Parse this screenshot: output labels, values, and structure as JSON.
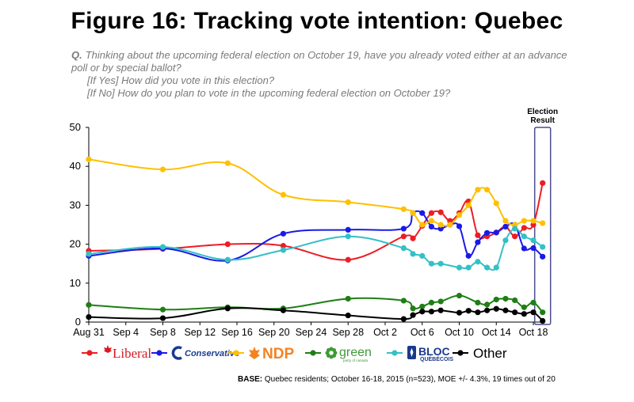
{
  "title": "Figure 16: Tracking vote intention: Quebec",
  "question": {
    "prefix": "Q.",
    "text": "Thinking about the upcoming federal election on October 19, have you already voted either at an advance poll or by special ballot?",
    "if_yes_tag": "[If Yes]",
    "if_yes": "How did you vote in this election?",
    "if_no_tag": "[If No]",
    "if_no": "How do you plan to vote in the upcoming federal election on October 19?"
  },
  "base_label": "BASE:",
  "base_text": "Quebec residents; October 16-18, 2015 (n=523), MOE +/- 4.3%, 19 times out of 20",
  "chart_data": {
    "type": "line",
    "x_type": "date",
    "x_axis_labels": [
      "Aug 31",
      "Sep 4",
      "Sep 8",
      "Sep 12",
      "Sep 16",
      "Sep 20",
      "Sep 24",
      "Sep 28",
      "Oct 2",
      "Oct 6",
      "Oct 10",
      "Oct 14",
      "Oct 18"
    ],
    "ylim": [
      0,
      50
    ],
    "yticks": [
      0,
      10,
      20,
      30,
      40,
      50
    ],
    "grid": false,
    "legend_position": "bottom",
    "highlight_label": "Election Result",
    "highlight_date": "Oct 19",
    "series": [
      {
        "name": "Liberal",
        "legend_style": "logo",
        "color": "#ee1c25",
        "points": [
          [
            "Aug 31",
            18.3
          ],
          [
            "Sep 8",
            18.8
          ],
          [
            "Sep 15",
            20
          ],
          [
            "Sep 21",
            19.6
          ],
          [
            "Sep 28",
            16
          ],
          [
            "Oct 4",
            22
          ],
          [
            "Oct 5",
            21.5
          ],
          [
            "Oct 6",
            24.7
          ],
          [
            "Oct 7",
            28
          ],
          [
            "Oct 8",
            28.2
          ],
          [
            "Oct 9",
            26
          ],
          [
            "Oct 10",
            28
          ],
          [
            "Oct 11",
            31
          ],
          [
            "Oct 12",
            22.3
          ],
          [
            "Oct 13",
            22
          ],
          [
            "Oct 14",
            23
          ],
          [
            "Oct 15",
            24.5
          ],
          [
            "Oct 16",
            22
          ],
          [
            "Oct 17",
            24.2
          ],
          [
            "Oct 18",
            25
          ],
          [
            "Oct 19",
            35.7
          ]
        ]
      },
      {
        "name": "Conservative",
        "legend_style": "logo",
        "color": "#1a1ae6",
        "points": [
          [
            "Aug 31",
            17
          ],
          [
            "Sep 8",
            18.9
          ],
          [
            "Sep 15",
            15.8
          ],
          [
            "Sep 21",
            22.7
          ],
          [
            "Sep 28",
            23.7
          ],
          [
            "Oct 4",
            24
          ],
          [
            "Oct 5",
            28
          ],
          [
            "Oct 6",
            28
          ],
          [
            "Oct 7",
            24.5
          ],
          [
            "Oct 8",
            24
          ],
          [
            "Oct 9",
            25
          ],
          [
            "Oct 10",
            24.6
          ],
          [
            "Oct 11",
            17
          ],
          [
            "Oct 12",
            20.5
          ],
          [
            "Oct 13",
            22.9
          ],
          [
            "Oct 14",
            23
          ],
          [
            "Oct 15",
            24.5
          ],
          [
            "Oct 16",
            25
          ],
          [
            "Oct 17",
            18.9
          ],
          [
            "Oct 18",
            19
          ],
          [
            "Oct 19",
            16.8
          ]
        ]
      },
      {
        "name": "NDP",
        "legend_style": "logo",
        "color": "#ffc000",
        "points": [
          [
            "Aug 31",
            41.8
          ],
          [
            "Sep 8",
            39.2
          ],
          [
            "Sep 15",
            40.8
          ],
          [
            "Sep 21",
            32.7
          ],
          [
            "Sep 28",
            30.8
          ],
          [
            "Oct 4",
            29
          ],
          [
            "Oct 5",
            28
          ],
          [
            "Oct 6",
            25
          ],
          [
            "Oct 7",
            26
          ],
          [
            "Oct 8",
            25
          ],
          [
            "Oct 9",
            25
          ],
          [
            "Oct 10",
            27.5
          ],
          [
            "Oct 11",
            30
          ],
          [
            "Oct 12",
            34
          ],
          [
            "Oct 13",
            34
          ],
          [
            "Oct 14",
            30.5
          ],
          [
            "Oct 15",
            26
          ],
          [
            "Oct 16",
            25
          ],
          [
            "Oct 17",
            26
          ],
          [
            "Oct 18",
            26
          ],
          [
            "Oct 19",
            25.4
          ]
        ]
      },
      {
        "name": "Green",
        "legend_style": "logo",
        "color": "#1e7f14",
        "points": [
          [
            "Aug 31",
            4.4
          ],
          [
            "Sep 8",
            3.2
          ],
          [
            "Sep 15",
            3.8
          ],
          [
            "Sep 21",
            3.5
          ],
          [
            "Sep 28",
            6
          ],
          [
            "Oct 4",
            5.5
          ],
          [
            "Oct 5",
            3.5
          ],
          [
            "Oct 6",
            4
          ],
          [
            "Oct 7",
            5
          ],
          [
            "Oct 8",
            5.3
          ],
          [
            "Oct 10",
            6.8
          ],
          [
            "Oct 12",
            5
          ],
          [
            "Oct 13",
            4.5
          ],
          [
            "Oct 14",
            5.8
          ],
          [
            "Oct 15",
            6
          ],
          [
            "Oct 16",
            5.6
          ],
          [
            "Oct 17",
            3.8
          ],
          [
            "Oct 18",
            5
          ],
          [
            "Oct 19",
            2.5
          ]
        ]
      },
      {
        "name": "Bloc Québécois",
        "legend_style": "logo",
        "color": "#33c0c6",
        "points": [
          [
            "Aug 31",
            17.5
          ],
          [
            "Sep 8",
            19.3
          ],
          [
            "Sep 15",
            16
          ],
          [
            "Sep 21",
            18.5
          ],
          [
            "Sep 28",
            22
          ],
          [
            "Oct 4",
            19
          ],
          [
            "Oct 5",
            17.5
          ],
          [
            "Oct 6",
            17
          ],
          [
            "Oct 7",
            15
          ],
          [
            "Oct 8",
            15
          ],
          [
            "Oct 10",
            14
          ],
          [
            "Oct 11",
            14
          ],
          [
            "Oct 12",
            15.5
          ],
          [
            "Oct 13",
            14
          ],
          [
            "Oct 14",
            14
          ],
          [
            "Oct 15",
            21
          ],
          [
            "Oct 16",
            24
          ],
          [
            "Oct 17",
            22
          ],
          [
            "Oct 18",
            21
          ],
          [
            "Oct 19",
            19.3
          ]
        ]
      },
      {
        "name": "Other",
        "legend_style": "text",
        "color": "#000000",
        "points": [
          [
            "Aug 31",
            1.3
          ],
          [
            "Sep 8",
            1
          ],
          [
            "Sep 15",
            3.5
          ],
          [
            "Sep 21",
            3
          ],
          [
            "Sep 28",
            1.7
          ],
          [
            "Oct 4",
            0.8
          ],
          [
            "Oct 5",
            1.8
          ],
          [
            "Oct 6",
            2.7
          ],
          [
            "Oct 7",
            2.7
          ],
          [
            "Oct 8",
            3
          ],
          [
            "Oct 10",
            2.4
          ],
          [
            "Oct 11",
            2.9
          ],
          [
            "Oct 12",
            2.5
          ],
          [
            "Oct 13",
            3
          ],
          [
            "Oct 14",
            3.4
          ],
          [
            "Oct 15",
            3
          ],
          [
            "Oct 16",
            2.5
          ],
          [
            "Oct 17",
            2.1
          ],
          [
            "Oct 18",
            2.5
          ],
          [
            "Oct 19",
            0.3
          ]
        ]
      }
    ]
  },
  "legend_logos": {
    "Liberal": {
      "text": "Liberal",
      "icon": "maple-leaf-icon",
      "color": "#d71920"
    },
    "Conservative": {
      "text": "Conservative",
      "icon": "conservative-c-icon",
      "color": "#1a3c8f"
    },
    "NDP": {
      "text": "NDP",
      "icon": "ndp-leaf-icon",
      "color": "#f58220"
    },
    "Green": {
      "text": "green",
      "subtext": "party of canada",
      "icon": "green-flower-icon",
      "color": "#3d9b35"
    },
    "Bloc Québécois": {
      "text": "BLOC",
      "subtext": "QUÉBÉCOIS",
      "icon": "bloc-fleur-icon",
      "color": "#1b3a8c"
    },
    "Other": {
      "text": "Other"
    }
  }
}
